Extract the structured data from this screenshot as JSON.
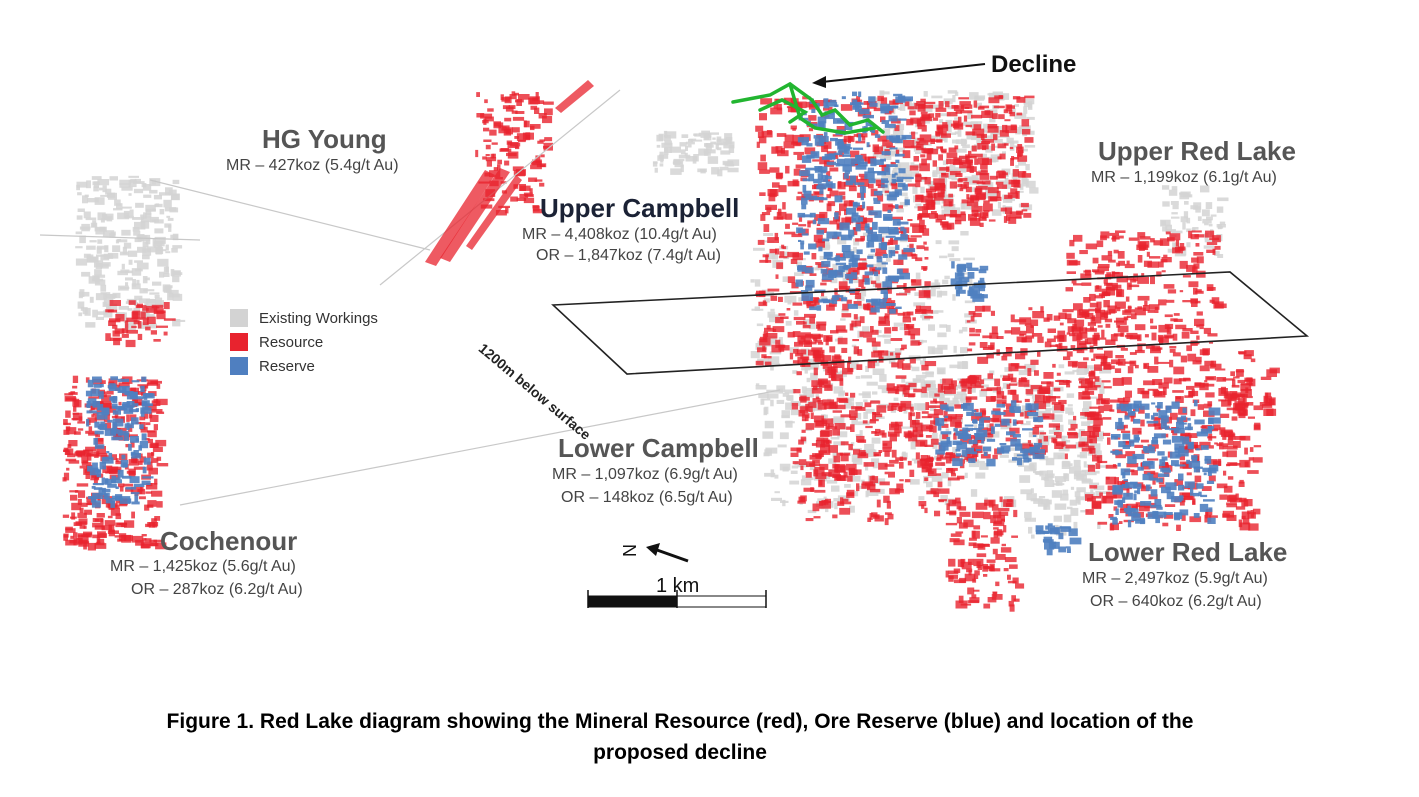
{
  "areas": {
    "hg_young": {
      "name": "HG Young",
      "mr": "MR – 427koz (5.4g/t Au)"
    },
    "upper_campbell": {
      "name": "Upper Campbell",
      "mr": "MR  –  4,408koz (10.4g/t Au)",
      "or": "OR – 1,847koz (7.4g/t Au)"
    },
    "upper_red_lake": {
      "name": "Upper Red Lake",
      "mr": "MR – 1,199koz (6.1g/t Au)"
    },
    "lower_campbell": {
      "name": "Lower Campbell",
      "mr": "MR – 1,097koz (6.9g/t Au)",
      "or": "OR – 148koz (6.5g/t Au)"
    },
    "cochenour": {
      "name": "Cochenour",
      "mr": "MR – 1,425koz (5.6g/t Au)",
      "or": "OR – 287koz (6.2g/t Au)"
    },
    "lower_red_lake": {
      "name": "Lower Red Lake",
      "mr": "MR – 2,497koz (5.9g/t Au)",
      "or": "OR – 640koz (6.2g/t Au)"
    }
  },
  "legend": {
    "existing": {
      "label": "Existing Workings",
      "color": "#d3d3d3"
    },
    "resource": {
      "label": "Resource",
      "color": "#e8232e"
    },
    "reserve": {
      "label": "Reserve",
      "color": "#4f7fc0"
    }
  },
  "decline_label": "Decline",
  "decline_color": "#22b530",
  "depth_plane_label": "1200m below surface",
  "north_label": "N",
  "scale_label": "1 km",
  "caption_line1": "Figure 1. Red Lake diagram showing the Mineral Resource (red), Ore Reserve (blue) and location of the",
  "caption_line2": "proposed decline"
}
